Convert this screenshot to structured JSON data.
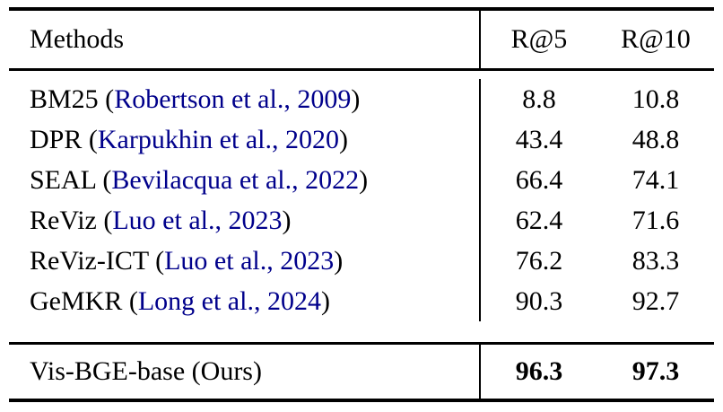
{
  "colors": {
    "background": "#ffffff",
    "text": "#000000",
    "citation_link": "#00008b",
    "rule": "#000000"
  },
  "table": {
    "header": {
      "methods_label": "Methods",
      "metric1": "R@5",
      "metric2": "R@10"
    },
    "rows": [
      {
        "prefix": "BM25 (",
        "citation": "Robertson et al., 2009",
        "suffix": ")",
        "r5": "8.8",
        "r10": "10.8"
      },
      {
        "prefix": "DPR (",
        "citation": "Karpukhin et al., 2020",
        "suffix": ")",
        "r5": "43.4",
        "r10": "48.8"
      },
      {
        "prefix": "SEAL (",
        "citation": "Bevilacqua et al., 2022",
        "suffix": ")",
        "r5": "66.4",
        "r10": "74.1"
      },
      {
        "prefix": "ReViz (",
        "citation": "Luo et al., 2023",
        "suffix": ")",
        "r5": "62.4",
        "r10": "71.6"
      },
      {
        "prefix": "ReViz-ICT (",
        "citation": "Luo et al., 2023",
        "suffix": ")",
        "r5": "76.2",
        "r10": "83.3"
      },
      {
        "prefix": "GeMKR (",
        "citation": "Long et al., 2024",
        "suffix": ")",
        "r5": "90.3",
        "r10": "92.7"
      }
    ],
    "footer": {
      "method": "Vis-BGE-base (Ours)",
      "r5": "96.3",
      "r10": "97.3"
    }
  }
}
